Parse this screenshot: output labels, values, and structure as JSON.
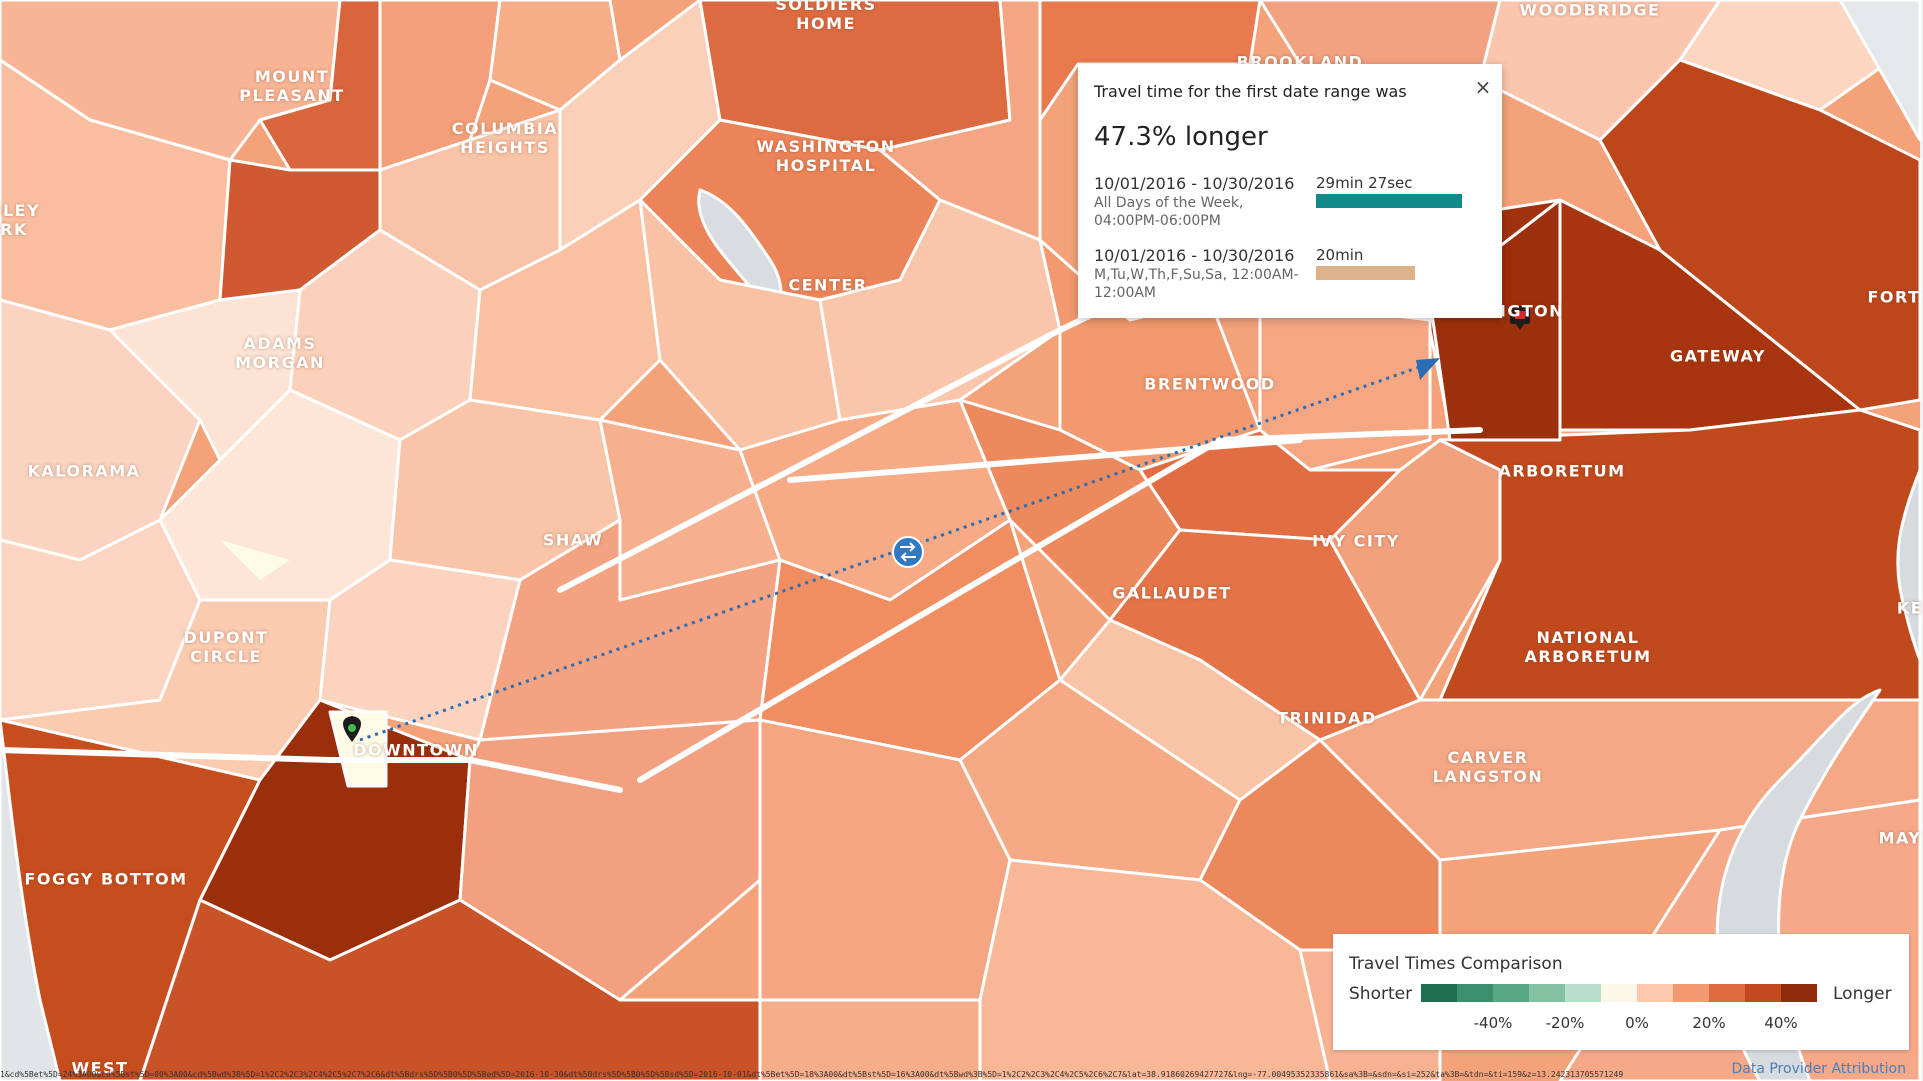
{
  "neighborhoods": [
    {
      "lines": [
        "SOLDIERS",
        "HOME"
      ]
    },
    {
      "lines": [
        "WOODBRIDGE"
      ]
    },
    {
      "lines": [
        "MOUNT",
        "PLEASANT"
      ]
    },
    {
      "lines": [
        "BROOKLAND"
      ]
    },
    {
      "lines": [
        "COLUMBIA",
        "HEIGHTS"
      ]
    },
    {
      "lines": [
        "WASHINGTON",
        "HOSPITAL"
      ]
    },
    {
      "lines": [
        "OLEY",
        "RK"
      ]
    },
    {
      "lines": [
        "CENTER"
      ]
    },
    {
      "lines": [
        "ADAMS",
        "MORGAN"
      ]
    },
    {
      "lines": [
        "IGTON"
      ]
    },
    {
      "lines": [
        "FORT"
      ]
    },
    {
      "lines": [
        "GATEWAY"
      ]
    },
    {
      "lines": [
        "BRENTWOOD"
      ]
    },
    {
      "lines": [
        "KALORAMA"
      ]
    },
    {
      "lines": [
        "ARBORETUM"
      ]
    },
    {
      "lines": [
        "SHAW"
      ]
    },
    {
      "lines": [
        "IVY CITY"
      ]
    },
    {
      "lines": [
        "GALLAUDET"
      ]
    },
    {
      "lines": [
        "DUPONT",
        "CIRCLE"
      ]
    },
    {
      "lines": [
        "KE"
      ]
    },
    {
      "lines": [
        "NATIONAL",
        "ARBORETUM"
      ]
    },
    {
      "lines": [
        "TRINIDAD"
      ]
    },
    {
      "lines": [
        "DOWNTOWN"
      ]
    },
    {
      "lines": [
        "CARVER",
        "LANGSTON"
      ]
    },
    {
      "lines": [
        "MAY"
      ]
    },
    {
      "lines": [
        "FOGGY BOTTOM"
      ]
    },
    {
      "lines": [
        "WEST"
      ]
    }
  ],
  "popup": {
    "title": "Travel time for the first date range was",
    "headline": "47.3% longer",
    "close_icon": "close-icon",
    "rows": [
      {
        "date_range": "10/01/2016 - 10/30/2016",
        "detail": "All Days of the Week, 04:00PM-06:00PM",
        "value": "29min 27sec",
        "color": "#128a8a",
        "fraction": 1.0
      },
      {
        "date_range": "10/01/2016 - 10/30/2016",
        "detail": "M,Tu,W,Th,F,Su,Sa, 12:00AM-12:00AM",
        "value": "20min",
        "color": "#dcb389",
        "fraction": 0.679
      }
    ]
  },
  "legend": {
    "title": "Travel Times Comparison",
    "left_label": "Shorter",
    "right_label": "Longer",
    "colors": [
      "#1f6f50",
      "#3b8f6c",
      "#5aa785",
      "#82c2a3",
      "#b7dfcb",
      "#fcf8e8",
      "#fcc9ad",
      "#f19a72",
      "#de6a3f",
      "#c24a1f",
      "#8f2b0a"
    ],
    "ticks": [
      "-40%",
      "-20%",
      "0%",
      "20%",
      "40%"
    ]
  },
  "markers": {
    "origin_icon": "origin-pin-icon",
    "destination_icon": "destination-pin-icon",
    "swap_icon": "swap-icon"
  },
  "attribution": "Data Provider Attribution",
  "url_text": "1&cd%5Bet%5D=24%3A00&cd%5Bst%5D=00%3A00&cd%5Bwd%3B%5D=1%2C2%2C3%2C4%2C5%2C7%2C6&dt%5Bdrs%5D%5B0%5D%5Bed%5D=2016-10-30&dt%5Bdrs%5D%5B0%5D%5Bsd%5D=2016-10-01&dt%5Bet%5D=18%3A00&dt%5Bst%5D=16%3A00&dt%5Bwd%3B%5D=1%2C2%2C3%2C4%2C5%2C6%2C7&lat=38.91860269427727&lng=-77.00495352335861&sa%3B=&sdn=&si=252&ta%3B=&tdn=&ti=159&z=13.242313705571249"
}
